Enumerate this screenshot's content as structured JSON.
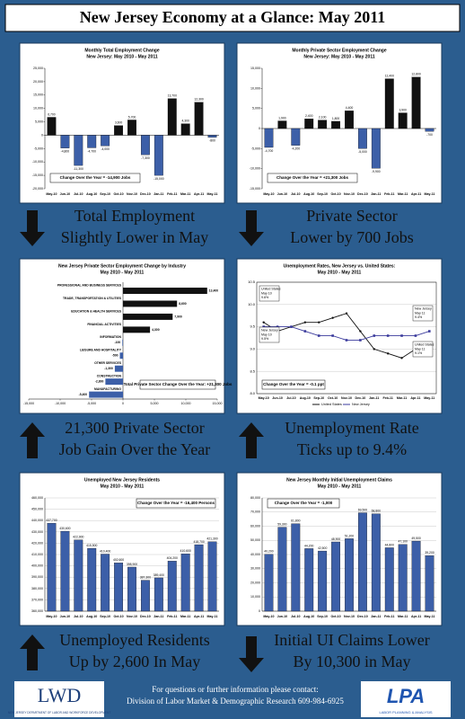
{
  "title": "New Jersey Economy at a Glance: May 2011",
  "chart_data": [
    {
      "type": "bar",
      "title": "Monthly Total Employment Change",
      "subtitle": "New Jersey: May 2010 - May 2011",
      "categories": [
        "May-10",
        "Jun-10",
        "Jul-10",
        "Aug-10",
        "Sep-10",
        "Oct-10",
        "Nov-10",
        "Dec-10",
        "Jan-11",
        "Feb-11",
        "Mar-11",
        "Apr-11",
        "May-11"
      ],
      "values": [
        6700,
        -4800,
        -11300,
        -4700,
        -4000,
        3600,
        5700,
        -7300,
        -15000,
        13700,
        4300,
        12300,
        -800
      ],
      "value_labels": [
        "6,700",
        "-4,800",
        "-11,300",
        "-4,700",
        "-4,000",
        "3,600",
        "5,700",
        "-7,300",
        "-15,000",
        "13,700",
        "4,300",
        "12,300",
        "-800"
      ],
      "color": "#111111",
      "negative_color": "#3c5fa8",
      "ylim": [
        -20000,
        25000
      ],
      "yticks": [
        {
          "value": -20000,
          "label": "-20,000"
        },
        {
          "value": -15000,
          "label": "-15,000"
        },
        {
          "value": -10000,
          "label": "-10,000"
        },
        {
          "value": -5000,
          "label": "-5,000"
        },
        0,
        {
          "value": 5000,
          "label": "5,000"
        },
        {
          "value": 10000,
          "label": "10,000"
        },
        {
          "value": 15000,
          "label": "15,000"
        },
        {
          "value": 20000,
          "label": "20,000"
        },
        {
          "value": 25000,
          "label": "25,000"
        }
      ],
      "grid": false,
      "note": "Change Over the Year = -14,900 Jobs"
    },
    {
      "type": "bar",
      "title": "Monthly Private Sector Employment Change",
      "subtitle": "New Jersey: May 2010 - May 2011",
      "categories": [
        "May-10",
        "Jun-10",
        "Jul-10",
        "Aug-10",
        "Sep-10",
        "Oct-10",
        "Nov-10",
        "Dec-10",
        "Jan-11",
        "Feb-11",
        "Mar-11",
        "Apr-11",
        "May-11"
      ],
      "values": [
        -4700,
        1900,
        -4200,
        2400,
        2100,
        1800,
        4400,
        -5000,
        -9900,
        12400,
        3900,
        12800,
        -700
      ],
      "value_labels": [
        "-4,700",
        "1,900",
        "-4,200",
        "2,400",
        "2,100",
        "1,800",
        "4,400",
        "-5,000",
        "-9,900",
        "12,400",
        "3,900",
        "12,800",
        "-700"
      ],
      "color": "#111111",
      "negative_color": "#3c5fa8",
      "ylim": [
        -15000,
        15000
      ],
      "yticks": [
        {
          "value": -15000,
          "label": "-15,000"
        },
        {
          "value": -10000,
          "label": "-10,000"
        },
        {
          "value": -5000,
          "label": "-5,000"
        },
        0,
        {
          "value": 5000,
          "label": "5,000"
        },
        {
          "value": 10000,
          "label": "10,000"
        },
        {
          "value": 15000,
          "label": "15,000"
        }
      ],
      "grid": false,
      "note": "Change Over the Year = +21,300 Jobs"
    },
    {
      "type": "hbar",
      "title": "New Jersey Private Sector Employment Change by Industry",
      "subtitle": "May 2010 - May 2011",
      "categories": [
        "PROFESSIONAL AND BUSINESS SERVICES",
        "TRADE, TRANSPORTATION & UTILITIES",
        "EDUCATION & HEALTH SERVICES",
        "FINANCIAL ACTIVITIES",
        "INFORMATION",
        "LEISURE AND HOSPITALITY",
        "OTHER SERVICES",
        "CONSTRUCTION",
        "MANUFACTURING"
      ],
      "values": [
        13400,
        8600,
        7900,
        4300,
        -100,
        -500,
        -1300,
        -2800,
        -5400
      ],
      "value_labels": [
        "13,400",
        "8,600",
        "7,900",
        "4,300",
        "-100",
        "-500",
        "-1,300",
        "-2,800",
        "-5,400"
      ],
      "color": "#111111",
      "negative_color": "#3c5fa8",
      "xlim": [
        -15000,
        15000
      ],
      "xticks": [
        {
          "value": -15000,
          "label": "-15,000"
        },
        {
          "value": -10000,
          "label": "-10,000"
        },
        {
          "value": -5000,
          "label": "-5,000"
        },
        0,
        {
          "value": 5000,
          "label": "5,000"
        },
        {
          "value": 10000,
          "label": "10,000"
        },
        {
          "value": 15000,
          "label": "15,000"
        }
      ],
      "note": "Total Private Sector Change Over the Year: +21,300 Jobs"
    },
    {
      "type": "line",
      "title": "Unemployment Rates, New Jersey vs. United States:",
      "subtitle": "May 2010 - May 2011",
      "categories": [
        "May-10",
        "Jun-10",
        "Jul-10",
        "Aug-10",
        "Sep-10",
        "Oct-10",
        "Nov-10",
        "Dec-10",
        "Jan-11",
        "Feb-11",
        "Mar-11",
        "Apr-11",
        "May-11"
      ],
      "series": [
        {
          "name": "United States",
          "color": "#111111",
          "values": [
            9.6,
            9.4,
            9.5,
            9.6,
            9.6,
            9.7,
            9.8,
            9.4,
            9.0,
            8.9,
            8.8,
            9.0,
            9.1
          ]
        },
        {
          "name": "New Jersey",
          "color": "#3a3a9c",
          "values": [
            9.5,
            9.5,
            9.5,
            9.4,
            9.3,
            9.3,
            9.2,
            9.2,
            9.3,
            9.3,
            9.3,
            9.3,
            9.4
          ]
        }
      ],
      "ylim": [
        8.0,
        10.5
      ],
      "yticks": [
        {
          "value": 8,
          "label": "8.0"
        },
        8.5,
        {
          "value": 9,
          "label": "9.0"
        },
        9.5,
        {
          "value": 10,
          "label": "10.0"
        },
        10.5
      ],
      "grid": true,
      "annotations": [
        [
          "United States",
          "May 10",
          "9.6%"
        ],
        [
          "New Jersey",
          "May 10",
          "9.5%"
        ],
        [
          "New Jersey",
          "May 11",
          "9.4%"
        ],
        [
          "United States",
          "May 11",
          "9.1%"
        ]
      ],
      "note": "Change Over the Year = -0.1 ppt"
    },
    {
      "type": "bar",
      "title": "Unemployed New Jersey Residents",
      "subtitle": "May 2010 - May 2011",
      "categories": [
        "May-10",
        "Jun-10",
        "Jul-10",
        "Aug-10",
        "Sep-10",
        "Oct-10",
        "Nov-10",
        "Dec-10",
        "Jan-11",
        "Feb-11",
        "Mar-11",
        "Apr-11",
        "May-11"
      ],
      "values": [
        437700,
        430600,
        422900,
        415500,
        410400,
        402600,
        398900,
        387300,
        389400,
        404200,
        410600,
        418700,
        421300
      ],
      "value_labels": [
        "437,700",
        "430,600",
        "422,900",
        "415,500",
        "410,400",
        "402,600",
        "398,900",
        "387,300",
        "389,400",
        "404,200",
        "410,600",
        "418,700",
        "421,300"
      ],
      "color": "#3c5fa8",
      "negative_color": "#3c5fa8",
      "ylim": [
        360000,
        460000
      ],
      "yticks": [
        {
          "value": 360000,
          "label": "360,000"
        },
        {
          "value": 370000,
          "label": "370,000"
        },
        {
          "value": 380000,
          "label": "380,000"
        },
        {
          "value": 390000,
          "label": "390,000"
        },
        {
          "value": 400000,
          "label": "400,000"
        },
        {
          "value": 410000,
          "label": "410,000"
        },
        {
          "value": 420000,
          "label": "420,000"
        },
        {
          "value": 430000,
          "label": "430,000"
        },
        {
          "value": 440000,
          "label": "440,000"
        },
        {
          "value": 450000,
          "label": "450,000"
        },
        {
          "value": 460000,
          "label": "460,000"
        }
      ],
      "grid": true,
      "note": "Change Over the Year = -16,400 Persons"
    },
    {
      "type": "bar",
      "title": "New Jersey Monthly Initial Unemployment Claims",
      "subtitle": "May 2010 - May 2011",
      "categories": [
        "May-10",
        "Jun-10",
        "Jul-10",
        "Aug-10",
        "Sep-10",
        "Oct-10",
        "Nov-10",
        "Dec-10",
        "Jan-11",
        "Feb-11",
        "Mar-11",
        "Apr-11",
        "May-11"
      ],
      "values": [
        40200,
        59300,
        61800,
        44200,
        42500,
        48900,
        51200,
        69500,
        68800,
        44800,
        47100,
        49500,
        39200
      ],
      "value_labels": [
        "40,200",
        "59,300",
        "61,800",
        "44,200",
        "42,500",
        "48,900",
        "51,200",
        "69,500",
        "68,800",
        "44,800",
        "47,100",
        "49,500",
        "39,200"
      ],
      "color": "#3c5fa8",
      "negative_color": "#3c5fa8",
      "ylim": [
        0,
        80000
      ],
      "yticks": [
        0,
        {
          "value": 10000,
          "label": "10,000"
        },
        {
          "value": 20000,
          "label": "20,000"
        },
        {
          "value": 30000,
          "label": "30,000"
        },
        {
          "value": 40000,
          "label": "40,000"
        },
        {
          "value": 50000,
          "label": "50,000"
        },
        {
          "value": 60000,
          "label": "60,000"
        },
        {
          "value": 70000,
          "label": "70,000"
        },
        {
          "value": 80000,
          "label": "80,000"
        }
      ],
      "grid": true,
      "note": "Change Over the Year = -1,000"
    }
  ],
  "captions": [
    [
      "Total Employment",
      "Slightly Lower in May"
    ],
    [
      "Private Sector",
      "Lower by 700 Jobs"
    ],
    [
      "21,300 Private Sector",
      "Job Gain Over the Year"
    ],
    [
      "Unemployment Rate",
      "Ticks up to 9.4%"
    ],
    [
      "Unemployed Residents",
      "Up by 2,600 In May"
    ],
    [
      "Initial UI Claims Lower",
      "By 10,300 in May"
    ]
  ],
  "footer": {
    "line1": "For questions or further information please contact:",
    "line2": "Division of Labor Market & Demographic Research 609-984-6925",
    "left_logo": "LWD",
    "left_logo_text": "NEW JERSEY DEPARTMENT OF LABOR AND WORKFORCE DEVELOPMENT",
    "right_logo": "LPA",
    "right_logo_text": "LABOR PLANNING & ANALYSIS"
  }
}
